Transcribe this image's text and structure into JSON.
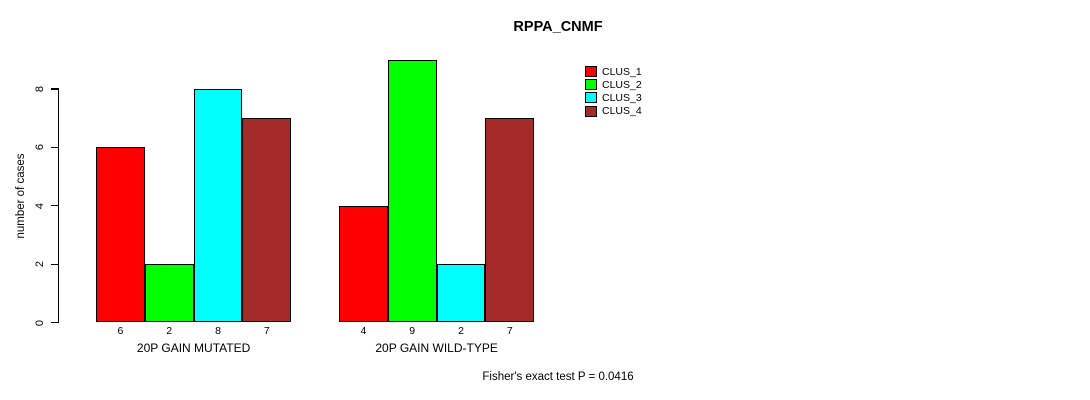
{
  "title": "RPPA_CNMF",
  "y_axis_label": "number of cases",
  "annotation": "Fisher's exact test P = 0.0416",
  "chart_data": {
    "type": "bar",
    "title": "RPPA_CNMF",
    "xlabel": "",
    "ylabel": "number of cases",
    "categories": [
      "20P GAIN MUTATED",
      "20P GAIN WILD-TYPE"
    ],
    "series": [
      {
        "name": "CLUS_1",
        "color": "#FF0000",
        "values": [
          6,
          4
        ]
      },
      {
        "name": "CLUS_2",
        "color": "#00FF00",
        "values": [
          2,
          9
        ]
      },
      {
        "name": "CLUS_3",
        "color": "#00FFFF",
        "values": [
          8,
          2
        ]
      },
      {
        "name": "CLUS_4",
        "color": "#A52A2A",
        "values": [
          7,
          7
        ]
      }
    ],
    "bar_value_labels": [
      [
        6,
        2,
        8,
        7
      ],
      [
        4,
        9,
        2,
        7
      ]
    ],
    "yticks": [
      0,
      2,
      4,
      6,
      8
    ],
    "ylim": [
      0,
      9
    ],
    "grid": false,
    "bar_border_color": "#000000",
    "legend_position": "top-right-inside",
    "annotation": "Fisher's exact test P = 0.0416"
  }
}
